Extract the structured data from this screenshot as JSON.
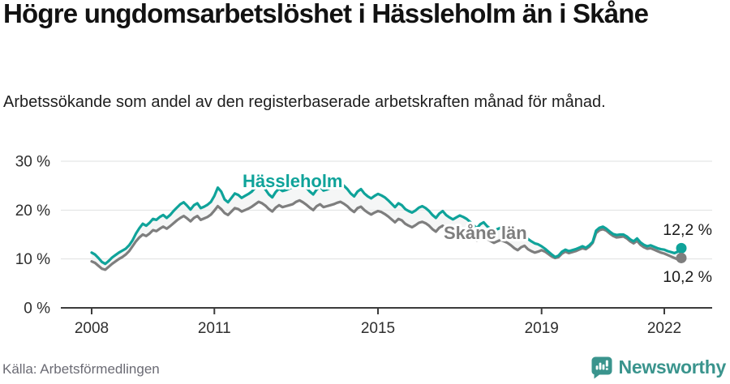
{
  "header": {
    "title": "Högre ungdomsarbetslöshet i Hässleholm än i Skåne",
    "subtitle": "Arbetssökande som andel av den registerbaserade arbetskraften månad för månad."
  },
  "footer": {
    "source": "Källa: Arbetsförmedlingen",
    "brand": "Newsworthy"
  },
  "colors": {
    "hassleholm": "#0fa39a",
    "skane": "#7e7e7e",
    "band": "#eceeee",
    "grid": "#dfe1e1",
    "axis": "#3c3c3c",
    "tick_text": "#2e2e2e",
    "end_label_text": "#1a1a1a",
    "brand_teal": "#3a948d"
  },
  "chart_data": {
    "type": "line",
    "x_start": "2008-01",
    "x_end": "2022-06",
    "x_unit": "month",
    "ylim": [
      0,
      30
    ],
    "yticks": [
      0,
      10,
      20,
      30
    ],
    "ytick_labels": [
      "0 %",
      "10 %",
      "20 %",
      "30 %"
    ],
    "xticks": [
      {
        "label": "2008",
        "month_index": 0
      },
      {
        "label": "2011",
        "month_index": 36
      },
      {
        "label": "2015",
        "month_index": 84
      },
      {
        "label": "2019",
        "month_index": 132
      },
      {
        "label": "2022",
        "month_index": 168
      }
    ],
    "grid": "horizontal",
    "legend": "inline-labels",
    "band_between_series": true,
    "series": [
      {
        "name": "Hässleholm",
        "end_label": "12,2 %",
        "end_value": 12.2,
        "values": [
          11.3,
          10.9,
          10.2,
          9.4,
          9.0,
          9.6,
          10.3,
          10.8,
          11.3,
          11.7,
          12.1,
          12.8,
          13.8,
          15.2,
          16.3,
          17.2,
          16.8,
          17.4,
          18.2,
          18.0,
          18.6,
          19.0,
          18.4,
          19.0,
          19.8,
          20.5,
          21.2,
          21.6,
          20.9,
          20.1,
          21.0,
          21.4,
          20.4,
          20.7,
          21.1,
          21.7,
          22.9,
          24.6,
          23.8,
          22.2,
          21.6,
          22.5,
          23.4,
          23.1,
          22.5,
          22.9,
          23.3,
          23.8,
          24.6,
          25.3,
          25.0,
          24.2,
          23.2,
          22.6,
          23.7,
          24.4,
          23.9,
          24.1,
          24.4,
          24.7,
          25.4,
          25.8,
          25.3,
          24.6,
          23.8,
          23.2,
          24.2,
          24.8,
          24.0,
          24.2,
          24.5,
          24.8,
          25.2,
          25.5,
          25.0,
          24.3,
          23.4,
          22.8,
          23.8,
          24.3,
          23.4,
          22.8,
          22.4,
          22.9,
          23.3,
          23.0,
          22.6,
          22.0,
          21.3,
          20.6,
          21.4,
          21.0,
          20.2,
          19.8,
          19.5,
          19.9,
          20.5,
          20.8,
          20.4,
          19.8,
          19.0,
          18.4,
          19.3,
          19.8,
          19.0,
          18.5,
          18.1,
          18.5,
          18.9,
          18.6,
          18.2,
          17.6,
          16.9,
          16.3,
          17.1,
          17.5,
          16.7,
          16.2,
          15.8,
          16.1,
          16.4,
          16.1,
          15.7,
          15.1,
          14.4,
          13.9,
          14.6,
          14.9,
          14.1,
          13.6,
          13.2,
          13.0,
          12.6,
          12.1,
          11.5,
          10.9,
          10.4,
          10.7,
          11.5,
          11.9,
          11.6,
          11.8,
          12.0,
          12.3,
          12.6,
          12.3,
          12.8,
          13.5,
          15.8,
          16.4,
          16.6,
          16.2,
          15.6,
          15.1,
          14.9,
          15.0,
          15.0,
          14.6,
          14.0,
          13.6,
          14.2,
          13.4,
          12.9,
          12.6,
          12.8,
          12.5,
          12.2,
          12.0,
          11.9,
          11.6,
          11.4,
          11.2,
          11.5,
          12.2
        ]
      },
      {
        "name": "Skåne län",
        "end_label": "10,2 %",
        "end_value": 10.2,
        "values": [
          9.5,
          9.2,
          8.6,
          8.0,
          7.8,
          8.4,
          9.0,
          9.5,
          10.0,
          10.4,
          10.9,
          11.6,
          12.6,
          13.6,
          14.4,
          15.0,
          14.7,
          15.2,
          15.9,
          15.7,
          16.2,
          16.6,
          16.2,
          16.7,
          17.3,
          17.9,
          18.4,
          18.8,
          18.3,
          17.7,
          18.4,
          18.8,
          18.0,
          18.3,
          18.6,
          19.1,
          19.9,
          20.8,
          20.2,
          19.4,
          19.0,
          19.7,
          20.4,
          20.2,
          19.7,
          20.0,
          20.3,
          20.7,
          21.2,
          21.7,
          21.4,
          20.9,
          20.2,
          19.7,
          20.5,
          21.0,
          20.6,
          20.8,
          21.0,
          21.2,
          21.7,
          22.0,
          21.6,
          21.1,
          20.5,
          20.0,
          20.8,
          21.2,
          20.6,
          20.8,
          21.0,
          21.2,
          21.5,
          21.7,
          21.3,
          20.8,
          20.1,
          19.6,
          20.4,
          20.7,
          20.0,
          19.5,
          19.1,
          19.5,
          19.8,
          19.6,
          19.2,
          18.7,
          18.1,
          17.5,
          18.2,
          17.9,
          17.2,
          16.8,
          16.5,
          16.9,
          17.4,
          17.6,
          17.3,
          16.8,
          16.1,
          15.6,
          16.4,
          16.8,
          16.1,
          15.7,
          15.3,
          15.7,
          16.0,
          15.8,
          15.4,
          14.9,
          14.3,
          13.8,
          14.5,
          14.8,
          14.1,
          13.7,
          13.3,
          13.6,
          13.9,
          13.6,
          13.3,
          12.8,
          12.2,
          11.8,
          12.4,
          12.7,
          12.0,
          11.6,
          11.3,
          11.5,
          11.8,
          11.5,
          11.0,
          10.5,
          10.2,
          10.4,
          11.1,
          11.5,
          11.2,
          11.4,
          11.6,
          11.9,
          12.2,
          12.0,
          12.5,
          13.3,
          15.3,
          15.9,
          16.1,
          15.8,
          15.2,
          14.7,
          14.4,
          14.5,
          14.6,
          14.2,
          13.6,
          13.2,
          13.7,
          12.9,
          12.4,
          12.1,
          12.2,
          11.9,
          11.6,
          11.3,
          11.1,
          10.8,
          10.5,
          10.2,
          9.9,
          10.2
        ]
      }
    ]
  }
}
